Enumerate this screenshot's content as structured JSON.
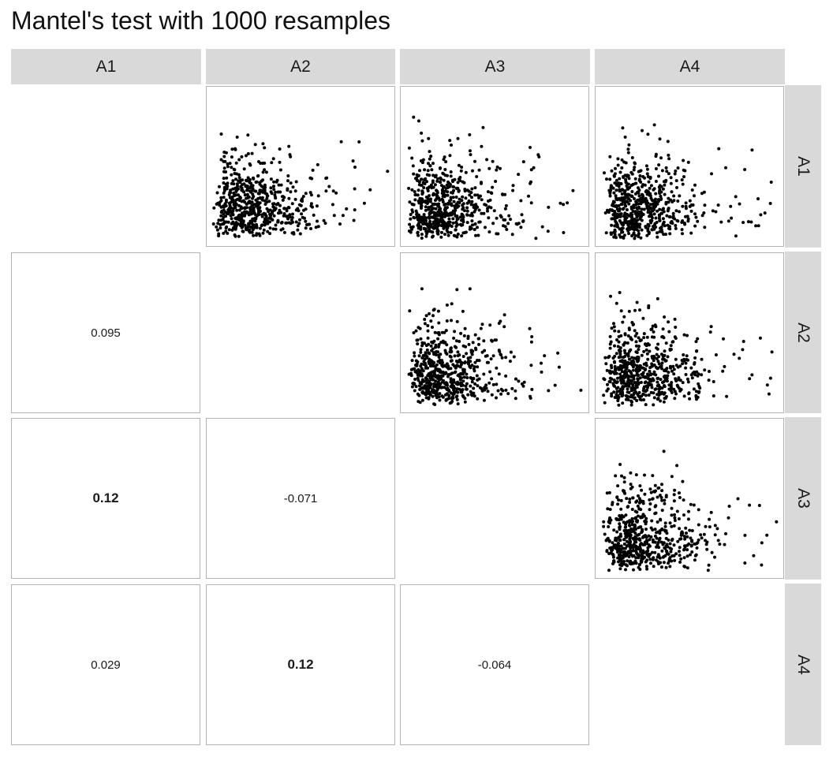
{
  "title": "Mantel's test with 1000 resamples",
  "variables": [
    "A1",
    "A2",
    "A3",
    "A4"
  ],
  "chart_data": {
    "type": "scatter-matrix",
    "title": "Mantel's test with 1000 resamples",
    "variables": [
      "A1",
      "A2",
      "A3",
      "A4"
    ],
    "upper_panels": [
      {
        "row": "A1",
        "col": "A2",
        "type": "scatter",
        "points": 600
      },
      {
        "row": "A1",
        "col": "A3",
        "type": "scatter",
        "points": 600
      },
      {
        "row": "A1",
        "col": "A4",
        "type": "scatter",
        "points": 600
      },
      {
        "row": "A2",
        "col": "A3",
        "type": "scatter",
        "points": 600
      },
      {
        "row": "A2",
        "col": "A4",
        "type": "scatter",
        "points": 600
      },
      {
        "row": "A3",
        "col": "A4",
        "type": "scatter",
        "points": 600
      }
    ],
    "lower_panels": [
      {
        "row": "A2",
        "col": "A1",
        "value": "0.095",
        "emphasis": "normal"
      },
      {
        "row": "A3",
        "col": "A1",
        "value": "0.12",
        "emphasis": "bold"
      },
      {
        "row": "A3",
        "col": "A2",
        "value": "-0.071",
        "emphasis": "normal"
      },
      {
        "row": "A4",
        "col": "A1",
        "value": "0.029",
        "emphasis": "normal"
      },
      {
        "row": "A4",
        "col": "A2",
        "value": "0.12",
        "emphasis": "bold"
      },
      {
        "row": "A4",
        "col": "A3",
        "value": "-0.064",
        "emphasis": "normal"
      }
    ],
    "diagonal": "empty",
    "point_color": "#000000"
  }
}
